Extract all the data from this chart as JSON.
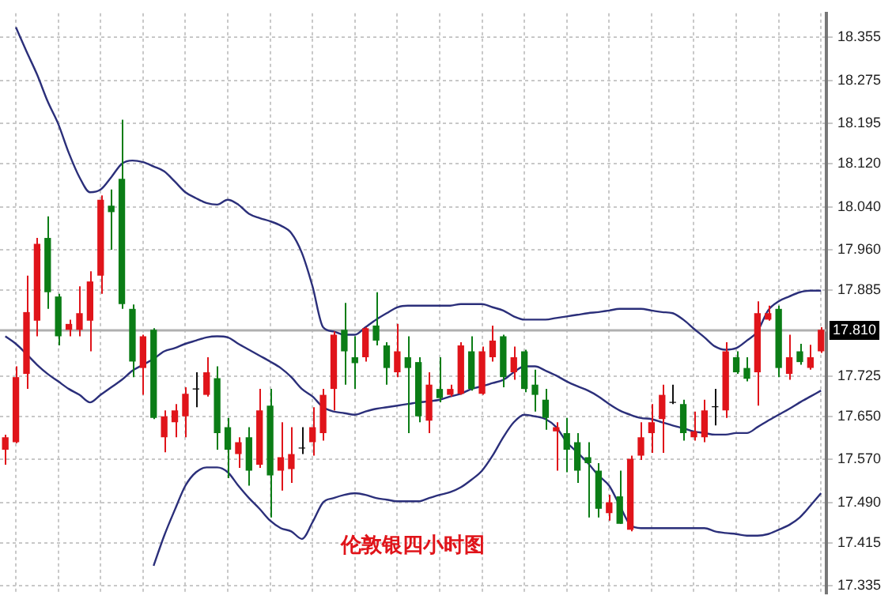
{
  "chart_data": {
    "type": "candlestick",
    "title": "伦敦银四小时图",
    "categories": [
      null,
      null,
      null,
      null,
      null,
      null,
      null,
      null,
      null,
      null,
      null,
      null,
      null,
      null,
      null,
      null,
      null,
      null,
      null,
      null,
      null,
      null,
      null,
      null,
      null,
      null,
      null,
      null,
      null,
      null,
      null,
      null,
      null,
      null,
      null,
      null,
      null,
      null,
      null,
      null,
      null,
      null,
      null,
      null,
      null,
      null,
      null,
      null,
      null,
      null,
      null,
      null,
      null,
      null,
      null,
      null,
      null,
      null,
      null,
      null,
      null,
      null,
      null,
      null,
      null,
      null,
      null,
      null,
      null,
      null,
      null,
      null,
      null,
      null,
      null,
      null,
      null,
      null
    ],
    "ohlc": [
      [
        17.588,
        17.616,
        17.56,
        17.611
      ],
      [
        17.602,
        17.743,
        17.6,
        17.723
      ],
      [
        17.729,
        17.912,
        17.701,
        17.844
      ],
      [
        17.828,
        17.982,
        17.799,
        17.971
      ],
      [
        17.982,
        18.022,
        17.85,
        17.881
      ],
      [
        17.873,
        17.878,
        17.782,
        17.799
      ],
      [
        17.811,
        17.83,
        17.799,
        17.822
      ],
      [
        17.811,
        17.892,
        17.799,
        17.842
      ],
      [
        17.828,
        17.92,
        17.771,
        17.901
      ],
      [
        17.912,
        18.061,
        17.878,
        18.053
      ],
      [
        18.042,
        18.072,
        17.96,
        18.03
      ],
      [
        18.092,
        18.202,
        17.85,
        17.859
      ],
      [
        17.85,
        17.858,
        17.723,
        17.752
      ],
      [
        17.74,
        17.802,
        17.69,
        17.799
      ],
      [
        17.811,
        17.814,
        17.645,
        17.647
      ],
      [
        17.611,
        17.661,
        17.583,
        17.65
      ],
      [
        17.639,
        17.673,
        17.611,
        17.661
      ],
      [
        17.65,
        17.704,
        17.611,
        17.692
      ],
      [
        17.7,
        17.732,
        17.667,
        17.702
      ],
      [
        17.69,
        17.76,
        17.687,
        17.732
      ],
      [
        17.721,
        17.743,
        17.588,
        17.619
      ],
      [
        17.63,
        17.647,
        17.535,
        17.588
      ],
      [
        17.58,
        17.611,
        17.554,
        17.602
      ],
      [
        17.611,
        17.63,
        17.521,
        17.549
      ],
      [
        17.56,
        17.701,
        17.554,
        17.661
      ],
      [
        17.67,
        17.701,
        17.462,
        17.54
      ],
      [
        17.549,
        17.639,
        17.512,
        17.574
      ],
      [
        17.552,
        17.63,
        17.526,
        17.58
      ],
      [
        17.59,
        17.63,
        17.58,
        17.592
      ],
      [
        17.602,
        17.667,
        17.577,
        17.63
      ],
      [
        17.619,
        17.701,
        17.605,
        17.69
      ],
      [
        17.701,
        17.808,
        17.661,
        17.802
      ],
      [
        17.811,
        17.861,
        17.709,
        17.771
      ],
      [
        17.76,
        17.799,
        17.701,
        17.749
      ],
      [
        17.76,
        17.816,
        17.752,
        17.814
      ],
      [
        17.819,
        17.881,
        17.782,
        17.791
      ],
      [
        17.782,
        17.788,
        17.709,
        17.74
      ],
      [
        17.732,
        17.822,
        17.723,
        17.771
      ],
      [
        17.76,
        17.799,
        17.619,
        17.74
      ],
      [
        17.751,
        17.76,
        17.639,
        17.65
      ],
      [
        17.642,
        17.732,
        17.619,
        17.709
      ],
      [
        17.701,
        17.76,
        17.676,
        17.684
      ],
      [
        17.69,
        17.709,
        17.687,
        17.701
      ],
      [
        17.692,
        17.788,
        17.69,
        17.782
      ],
      [
        17.771,
        17.799,
        17.698,
        17.701
      ],
      [
        17.692,
        17.78,
        17.69,
        17.771
      ],
      [
        17.76,
        17.819,
        17.752,
        17.791
      ],
      [
        17.799,
        17.802,
        17.704,
        17.723
      ],
      [
        17.732,
        17.78,
        17.718,
        17.76
      ],
      [
        17.771,
        17.774,
        17.695,
        17.701
      ],
      [
        17.709,
        17.737,
        17.659,
        17.69
      ],
      [
        17.681,
        17.701,
        17.625,
        17.647
      ],
      [
        17.622,
        17.639,
        17.549,
        17.63
      ],
      [
        17.619,
        17.647,
        17.546,
        17.588
      ],
      [
        17.602,
        17.619,
        17.526,
        17.549
      ],
      [
        17.574,
        17.602,
        17.462,
        17.563
      ],
      [
        17.549,
        17.563,
        17.462,
        17.478
      ],
      [
        17.47,
        17.504,
        17.456,
        17.49
      ],
      [
        17.501,
        17.549,
        17.45,
        17.45
      ],
      [
        17.439,
        17.577,
        17.436,
        17.571
      ],
      [
        17.577,
        17.639,
        17.569,
        17.611
      ],
      [
        17.619,
        17.673,
        17.582,
        17.639
      ],
      [
        17.645,
        17.709,
        17.582,
        17.69
      ],
      [
        17.675,
        17.709,
        17.673,
        17.677
      ],
      [
        17.673,
        17.681,
        17.605,
        17.619
      ],
      [
        17.611,
        17.659,
        17.605,
        17.622
      ],
      [
        17.611,
        17.681,
        17.602,
        17.661
      ],
      [
        17.667,
        17.701,
        17.633,
        17.669
      ],
      [
        17.661,
        17.788,
        17.647,
        17.771
      ],
      [
        17.76,
        17.771,
        17.729,
        17.732
      ],
      [
        17.74,
        17.76,
        17.715,
        17.72
      ],
      [
        17.732,
        17.864,
        17.67,
        17.842
      ],
      [
        17.83,
        17.856,
        17.828,
        17.842
      ],
      [
        17.85,
        17.856,
        17.723,
        17.74
      ],
      [
        17.729,
        17.802,
        17.718,
        17.76
      ],
      [
        17.771,
        17.785,
        17.746,
        17.751
      ],
      [
        17.74,
        17.783,
        17.737,
        17.76
      ],
      [
        17.771,
        17.816,
        17.768,
        17.811
      ]
    ],
    "colors": [
      "#e0141a",
      "#e0141a",
      "#e0141a",
      "#e0141a",
      "#0b7d16",
      "#0b7d16",
      "#e0141a",
      "#e0141a",
      "#e0141a",
      "#e0141a",
      "#0b7d16",
      "#0b7d16",
      "#0b7d16",
      "#e0141a",
      "#0b7d16",
      "#e0141a",
      "#e0141a",
      "#e0141a",
      "#111111",
      "#e0141a",
      "#0b7d16",
      "#0b7d16",
      "#e0141a",
      "#0b7d16",
      "#e0141a",
      "#0b7d16",
      "#e0141a",
      "#e0141a",
      "#111111",
      "#e0141a",
      "#e0141a",
      "#e0141a",
      "#0b7d16",
      "#0b7d16",
      "#e0141a",
      "#0b7d16",
      "#0b7d16",
      "#e0141a",
      "#0b7d16",
      "#0b7d16",
      "#e0141a",
      "#0b7d16",
      "#e0141a",
      "#e0141a",
      "#0b7d16",
      "#e0141a",
      "#e0141a",
      "#0b7d16",
      "#e0141a",
      "#0b7d16",
      "#0b7d16",
      "#0b7d16",
      "#e0141a",
      "#0b7d16",
      "#0b7d16",
      "#0b7d16",
      "#0b7d16",
      "#e0141a",
      "#0b7d16",
      "#e0141a",
      "#e0141a",
      "#e0141a",
      "#e0141a",
      "#111111",
      "#0b7d16",
      "#e0141a",
      "#e0141a",
      "#111111",
      "#e0141a",
      "#0b7d16",
      "#0b7d16",
      "#e0141a",
      "#e0141a",
      "#0b7d16",
      "#e0141a",
      "#0b7d16",
      "#e0141a",
      "#e0141a"
    ],
    "series": [
      {
        "type": "line",
        "color": "#2b2f7a",
        "values": [
          null,
          18.374,
          18.329,
          18.286,
          18.236,
          18.194,
          18.14,
          18.095,
          18.067,
          18.072,
          18.095,
          18.12,
          18.126,
          18.123,
          18.115,
          18.106,
          18.087,
          18.067,
          18.056,
          18.047,
          18.044,
          18.053,
          18.044,
          18.027,
          18.019,
          18.013,
          18.005,
          17.991,
          17.954,
          17.892,
          17.816,
          17.808,
          17.802,
          17.802,
          17.816,
          17.83,
          17.842,
          17.853,
          17.856,
          17.856,
          17.856,
          17.856,
          17.856,
          17.859,
          17.859,
          17.859,
          17.853,
          17.847,
          17.836,
          17.83,
          17.83,
          17.83,
          17.833,
          17.836,
          17.839,
          17.842,
          17.844,
          17.847,
          17.85,
          17.85,
          17.85,
          17.847,
          17.844,
          17.842,
          17.83,
          17.813,
          17.797,
          17.78,
          17.774,
          17.777,
          17.791,
          17.808,
          17.847,
          17.864,
          17.873,
          17.881,
          17.884,
          17.884
        ]
      },
      {
        "type": "line",
        "color": "#2b2f7a",
        "values": [
          17.799,
          17.785,
          17.766,
          17.746,
          17.729,
          17.715,
          17.701,
          17.69,
          17.676,
          17.69,
          17.704,
          17.718,
          17.735,
          17.746,
          17.757,
          17.771,
          17.777,
          17.785,
          17.791,
          17.797,
          17.799,
          17.797,
          17.785,
          17.774,
          17.763,
          17.752,
          17.74,
          17.723,
          17.701,
          17.687,
          17.667,
          17.659,
          17.656,
          17.653,
          17.659,
          17.664,
          17.667,
          17.67,
          17.673,
          17.676,
          17.678,
          17.681,
          17.687,
          17.692,
          17.701,
          17.706,
          17.712,
          17.718,
          17.732,
          17.743,
          17.743,
          17.735,
          17.726,
          17.715,
          17.706,
          17.698,
          17.687,
          17.673,
          17.661,
          17.653,
          17.647,
          17.645,
          17.639,
          17.633,
          17.628,
          17.622,
          17.619,
          17.616,
          17.616,
          17.619,
          17.619,
          17.63,
          17.642,
          17.653,
          17.664,
          17.676,
          17.687,
          17.698
        ]
      },
      {
        "type": "line",
        "color": "#2b2f7a",
        "values": [
          null,
          null,
          null,
          null,
          null,
          null,
          null,
          null,
          null,
          null,
          null,
          null,
          null,
          null,
          17.372,
          17.428,
          17.476,
          17.521,
          17.546,
          17.555,
          17.555,
          17.546,
          17.521,
          17.498,
          17.478,
          17.456,
          17.442,
          17.436,
          17.422,
          17.453,
          17.49,
          17.498,
          17.504,
          17.507,
          17.504,
          17.498,
          17.495,
          17.492,
          17.492,
          17.492,
          17.498,
          17.504,
          17.509,
          17.518,
          17.532,
          17.549,
          17.577,
          17.611,
          17.639,
          17.653,
          17.65,
          17.645,
          17.63,
          17.602,
          17.583,
          17.563,
          17.54,
          17.521,
          17.484,
          17.448,
          17.442,
          17.442,
          17.442,
          17.442,
          17.442,
          17.442,
          17.442,
          17.436,
          17.433,
          17.431,
          17.428,
          17.428,
          17.431,
          17.439,
          17.448,
          17.462,
          17.484,
          17.507
        ]
      }
    ],
    "ylim": [
      17.32,
      18.4
    ],
    "yticks": [
      18.355,
      18.275,
      18.195,
      {
        "value": 18.12,
        "label": "18.120"
      },
      {
        "value": 18.04,
        "label": "18.040"
      },
      {
        "value": 17.96,
        "label": "17.960"
      },
      17.885,
      17.725,
      {
        "value": 17.65,
        "label": "17.650"
      },
      {
        "value": 17.57,
        "label": "17.570"
      },
      {
        "value": 17.49,
        "label": "17.490"
      },
      17.415,
      17.335
    ],
    "ref_lines": [
      {
        "axis": "y",
        "value": 17.81,
        "label": "17.810",
        "color": "#b0b0b0"
      }
    ],
    "grid": true,
    "marker": "none",
    "tick_labels": "y"
  }
}
